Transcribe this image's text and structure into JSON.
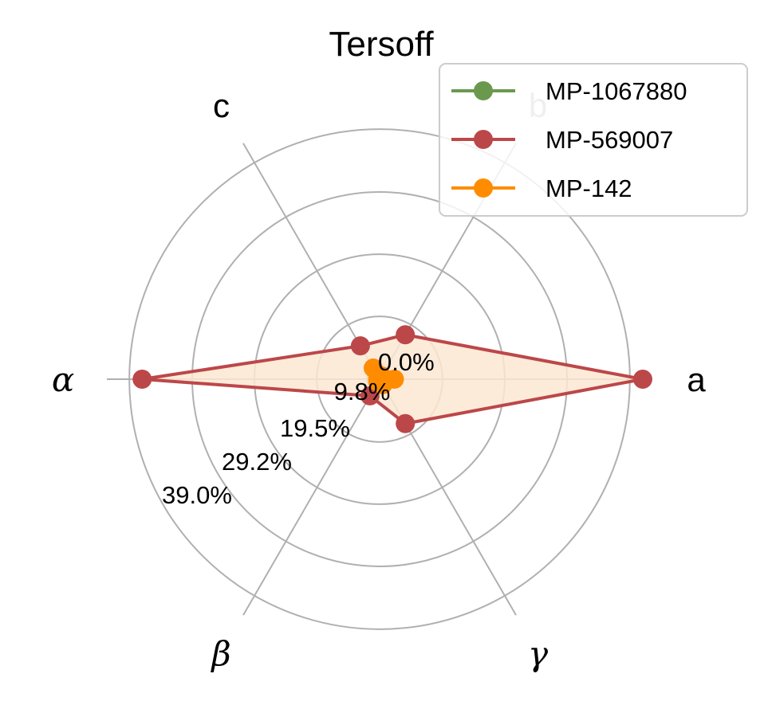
{
  "chart_data": {
    "type": "radar",
    "title": "Tersoff",
    "axes": [
      "a",
      "b",
      "c",
      "α",
      "β",
      "γ"
    ],
    "r_ticks": [
      0.0,
      9.8,
      19.5,
      29.2,
      39.0
    ],
    "r_tick_labels": [
      "0.0%",
      "9.8%",
      "19.5%",
      "29.2%",
      "39.0%"
    ],
    "r_max": 42.5,
    "grid": true,
    "legend_placement": "top-right",
    "series": [
      {
        "name": "MP-1067880",
        "color": "#6a994e",
        "values": [
          0.5,
          0.3,
          0.4,
          0.6,
          0.4,
          0.5
        ]
      },
      {
        "name": "MP-569007",
        "color": "#bc4749",
        "values": [
          41.0,
          8.0,
          6.0,
          37.0,
          3.0,
          8.0
        ],
        "fill": "#fde7d4"
      },
      {
        "name": "MP-142",
        "color": "#ff8c00",
        "values": [
          2.3,
          0.6,
          2.0,
          0.3,
          0.5,
          1.0
        ]
      }
    ]
  }
}
